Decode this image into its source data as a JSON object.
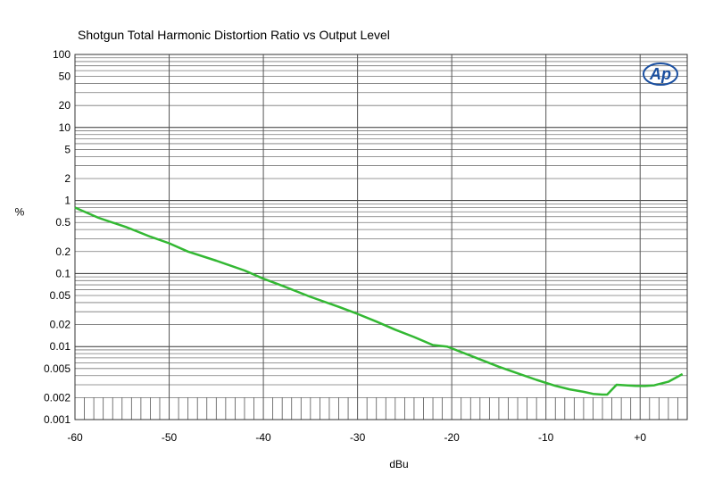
{
  "chart_data": {
    "type": "line",
    "title": "Shotgun Total Harmonic Distortion Ratio vs Output Level",
    "xlabel": "dBu",
    "ylabel": "%",
    "xlim": [
      -60,
      5
    ],
    "ylim": [
      0.001,
      100
    ],
    "yscale": "log",
    "grid": true,
    "x_ticks": [
      "-60",
      "-50",
      "-40",
      "-30",
      "-20",
      "-10",
      "+0"
    ],
    "y_ticks": [
      "100",
      "50",
      "20",
      "10",
      "5",
      "2",
      "1",
      "0.5",
      "0.2",
      "0.1",
      "0.05",
      "0.02",
      "0.01",
      "0.005",
      "0.002",
      "0.001"
    ],
    "series": [
      {
        "color": "#33b833",
        "x": [
          -60,
          -57.5,
          -54.5,
          -52,
          -50,
          -48,
          -45,
          -42,
          -40,
          -38,
          -35,
          -32,
          -30,
          -28,
          -26,
          -24,
          -22,
          -20.5,
          -18,
          -15,
          -13,
          -11,
          -9,
          -7.5,
          -6,
          -5,
          -4,
          -3.5,
          -2.5,
          -1.5,
          -0.5,
          0.5,
          1.5,
          3,
          4.5
        ],
        "y": [
          0.8,
          0.58,
          0.43,
          0.32,
          0.26,
          0.2,
          0.15,
          0.11,
          0.085,
          0.068,
          0.048,
          0.035,
          0.028,
          0.022,
          0.017,
          0.0135,
          0.0105,
          0.01,
          0.0075,
          0.0053,
          0.0043,
          0.0035,
          0.0029,
          0.0026,
          0.0024,
          0.00225,
          0.0022,
          0.0022,
          0.003,
          0.00295,
          0.0029,
          0.00288,
          0.00295,
          0.0033,
          0.0042
        ]
      }
    ]
  },
  "logo": {
    "text": "Ap",
    "color": "#1a4fa0"
  }
}
